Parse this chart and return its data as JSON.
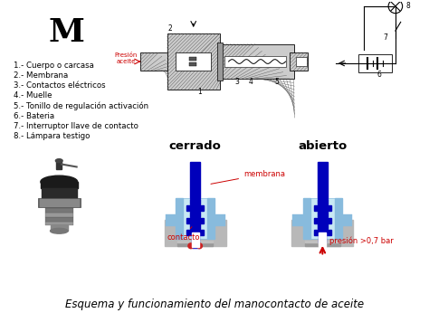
{
  "title": "Esquema y funcionamiento del manocontacto de aceite",
  "bg_color": "#ffffff",
  "legend_items": [
    "1.- Cuerpo o carcasa",
    "2.- Membrana",
    "3.- Contactos eléctricos",
    "4.- Muelle",
    "5.- Tonillo de regulación activación",
    "6.- Bateria",
    "7.- Interruptor llave de contacto",
    "8.- Lámpara testigo"
  ],
  "cerrado_label": "cerrado",
  "abierto_label": "abierto",
  "membrana_label": "membrana",
  "contacto_label": "contacto",
  "presion_label": "presión >0,7 bar",
  "presion_aceite_label": "Presión\naceite",
  "label_color_red": "#cc0000",
  "dark_blue": "#0000bb",
  "med_blue": "#3366bb",
  "light_blue": "#88bbdd",
  "lighter_blue": "#aad4e8",
  "very_light_blue": "#c8e8f4",
  "gray_base": "#b8b8b8",
  "hatch_gray": "#888888",
  "title_fontsize": 8.5,
  "legend_fontsize": 6.2
}
